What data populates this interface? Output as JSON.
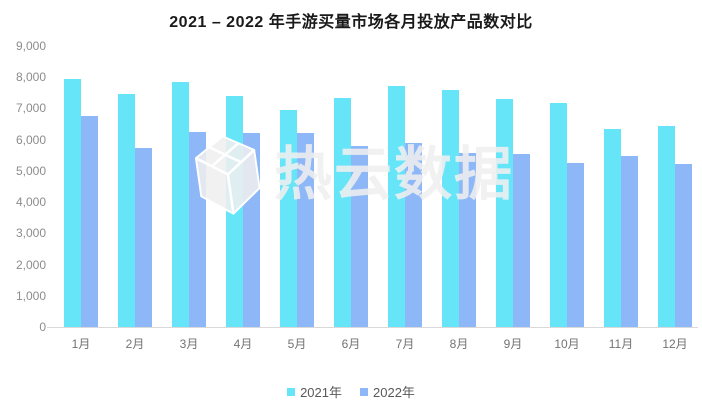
{
  "chart_data": {
    "type": "bar",
    "title": "2021 – 2022 年手游买量市场各月投放产品数对比",
    "categories": [
      "1月",
      "2月",
      "3月",
      "4月",
      "5月",
      "6月",
      "7月",
      "8月",
      "9月",
      "10月",
      "11月",
      "12月"
    ],
    "series": [
      {
        "name": "2021年",
        "color": "#66e5f9",
        "values": [
          7950,
          7450,
          7840,
          7400,
          6950,
          7340,
          7710,
          7580,
          7290,
          7160,
          6350,
          6440
        ]
      },
      {
        "name": "2022年",
        "color": "#8db7f7",
        "values": [
          6770,
          5740,
          6250,
          6210,
          6230,
          5790,
          5880,
          5560,
          5530,
          5270,
          5470,
          5230
        ]
      }
    ],
    "xlabel": "",
    "ylabel": "",
    "ylim": [
      0,
      9000
    ],
    "ytick_labels": [
      "0",
      "1,000",
      "2,000",
      "3,000",
      "4,000",
      "5,000",
      "6,000",
      "7,000",
      "8,000",
      "9,000"
    ],
    "grid": false,
    "legend_position": "bottom"
  },
  "watermark": {
    "text": "热云数据",
    "logo": "gem-icon"
  },
  "colors": {
    "axis_line": "#d9d9d9",
    "y_tick_text": "#8c8c8c",
    "x_tick_text": "#737373",
    "legend_text": "#595959",
    "title_text": "#1a1a1a",
    "watermark": "#efefef"
  }
}
